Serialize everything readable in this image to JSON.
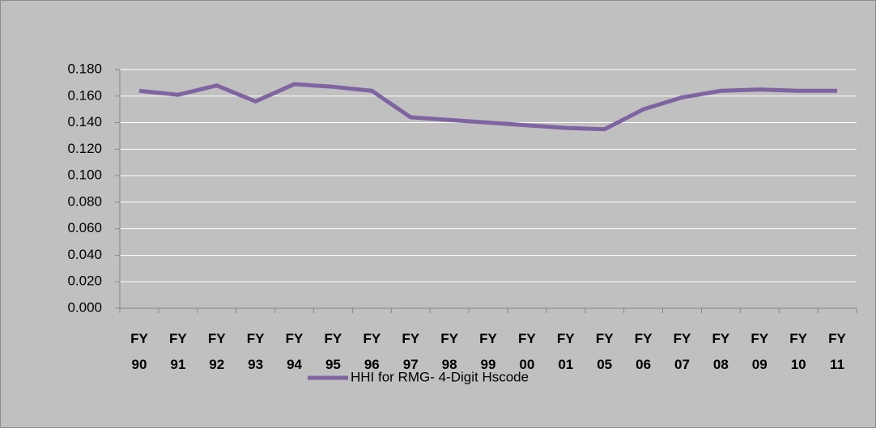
{
  "chart_data": {
    "type": "line",
    "categories": [
      "FY 90",
      "FY 91",
      "FY 92",
      "FY 93",
      "FY 94",
      "FY 95",
      "FY 96",
      "FY 97",
      "FY 98",
      "FY 99",
      "FY 00",
      "FY 01",
      "FY 05",
      "FY 06",
      "FY 07",
      "FY 08",
      "FY 09",
      "FY 10",
      "FY 11"
    ],
    "series": [
      {
        "name": "HHI for RMG- 4-Digit Hscode",
        "color": "#8064a2",
        "values": [
          0.164,
          0.161,
          0.168,
          0.156,
          0.169,
          0.167,
          0.164,
          0.144,
          0.142,
          0.14,
          0.138,
          0.136,
          0.135,
          0.15,
          0.159,
          0.164,
          0.165,
          0.164,
          0.164
        ]
      }
    ],
    "ylim": [
      0,
      0.18
    ],
    "yticks": [
      {
        "value": 0,
        "label": "0.000"
      },
      {
        "value": 0.02,
        "label": "0.020"
      },
      {
        "value": 0.04,
        "label": "0.040"
      },
      {
        "value": 0.06,
        "label": "0.060"
      },
      {
        "value": 0.08,
        "label": "0.080"
      },
      {
        "value": 0.1,
        "label": "0.100"
      },
      {
        "value": 0.12,
        "label": "0.120"
      },
      {
        "value": 0.14,
        "label": "0.140"
      },
      {
        "value": 0.16,
        "label": "0.160"
      },
      {
        "value": 0.18,
        "label": "0.180"
      }
    ],
    "grid": true,
    "legend": "bottom"
  }
}
